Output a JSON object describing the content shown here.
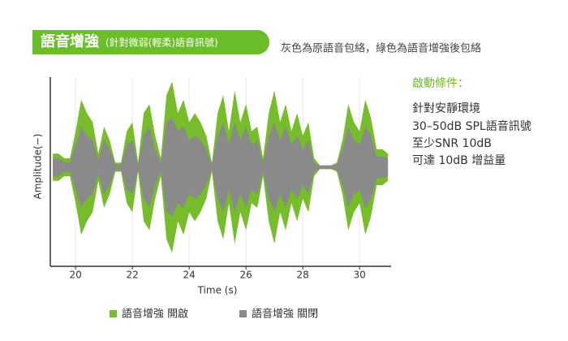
{
  "chart_data": {
    "type": "area",
    "title": "語音增強",
    "subtitle": "(針對微弱(輕柔)語音訊號)",
    "note": "灰色為原語音包絡，綠色為語音增強後包絡",
    "conditions": {
      "heading": "啟動條件：",
      "items": [
        "針對安靜環境",
        "30–50dB SPL語音訊號",
        "至少SNR 10dB",
        "可達 10dB 增益量"
      ]
    },
    "xlabel": "Time (s)",
    "ylabel": "Amplitude(−)",
    "xlim": [
      19.11,
      31.11
    ],
    "xticks": [
      20,
      22,
      24,
      26,
      28,
      30
    ],
    "ylim": [
      -1.1,
      1
    ],
    "grid": true,
    "x": [
      19.2,
      19.4,
      19.6,
      19.8,
      20.0,
      20.2,
      20.4,
      20.6,
      20.8,
      21.0,
      21.2,
      21.4,
      21.6,
      21.8,
      22.0,
      22.2,
      22.4,
      22.6,
      22.8,
      23.0,
      23.2,
      23.4,
      23.6,
      23.8,
      24.0,
      24.2,
      24.4,
      24.6,
      24.8,
      25.0,
      25.2,
      25.4,
      25.6,
      25.8,
      26.0,
      26.2,
      26.4,
      26.6,
      26.8,
      27.0,
      27.2,
      27.4,
      27.6,
      27.8,
      28.0,
      28.2,
      28.4,
      28.6,
      28.8,
      29.0,
      29.2,
      29.4,
      29.6,
      29.8,
      30.0,
      30.2,
      30.4,
      30.6,
      30.8,
      31.0
    ],
    "series": [
      {
        "name": "語音增強 開啟",
        "color": "#77bc2a",
        "values": [
          0.15,
          0.15,
          0.1,
          0.1,
          0.4,
          0.75,
          0.6,
          0.5,
          0.15,
          0.45,
          0.3,
          0.05,
          0.05,
          0.4,
          0.5,
          0.05,
          0.6,
          0.7,
          0.35,
          0.1,
          0.8,
          0.95,
          0.6,
          0.75,
          0.5,
          0.6,
          0.5,
          0.35,
          0.05,
          0.6,
          0.8,
          0.4,
          0.85,
          0.5,
          0.7,
          0.4,
          0.45,
          0.1,
          0.6,
          0.85,
          0.5,
          0.7,
          0.4,
          0.6,
          0.35,
          0.5,
          0.1,
          0.02,
          0.02,
          0.02,
          0.05,
          0.3,
          0.7,
          0.5,
          0.4,
          0.75,
          0.55,
          0.2,
          0.2,
          0.15
        ]
      },
      {
        "name": "語音增強 關閉",
        "color": "#8a8a8a",
        "values": [
          0.1,
          0.1,
          0.05,
          0.05,
          0.25,
          0.45,
          0.35,
          0.3,
          0.08,
          0.3,
          0.2,
          0.03,
          0.03,
          0.25,
          0.3,
          0.03,
          0.35,
          0.45,
          0.2,
          0.05,
          0.5,
          0.55,
          0.4,
          0.45,
          0.3,
          0.35,
          0.3,
          0.2,
          0.03,
          0.35,
          0.5,
          0.25,
          0.5,
          0.3,
          0.45,
          0.25,
          0.3,
          0.05,
          0.35,
          0.5,
          0.3,
          0.45,
          0.25,
          0.35,
          0.2,
          0.3,
          0.05,
          0.02,
          0.02,
          0.02,
          0.03,
          0.2,
          0.45,
          0.3,
          0.25,
          0.45,
          0.35,
          0.12,
          0.12,
          0.1
        ]
      }
    ]
  }
}
